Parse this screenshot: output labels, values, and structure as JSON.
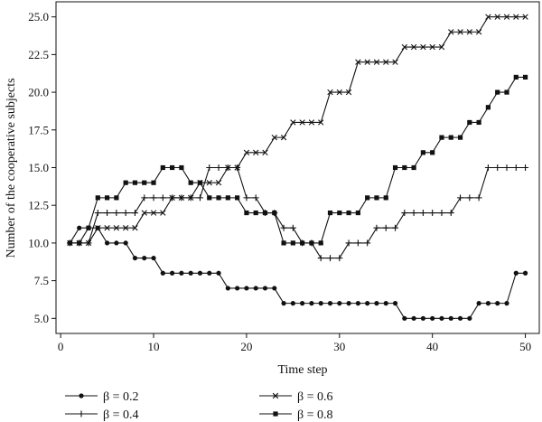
{
  "chart_data": {
    "type": "line",
    "xlabel": "Time step",
    "ylabel": "Number of the cooperative subjects",
    "xlim": [
      -0.5,
      51.5
    ],
    "ylim": [
      4.0,
      26.0
    ],
    "xticks": [
      0,
      10,
      20,
      30,
      40,
      50
    ],
    "yticks": [
      5.0,
      7.5,
      10.0,
      12.5,
      15.0,
      17.5,
      20.0,
      22.5,
      25.0
    ],
    "xtick_labels": [
      "0",
      "10",
      "20",
      "30",
      "40",
      "50"
    ],
    "ytick_labels": [
      "5.0",
      "7.5",
      "10.0",
      "12.5",
      "15.0",
      "17.5",
      "20.0",
      "22.5",
      "25.0"
    ],
    "grid": false,
    "legend_position": "bottom",
    "x": [
      1,
      2,
      3,
      4,
      5,
      6,
      7,
      8,
      9,
      10,
      11,
      12,
      13,
      14,
      15,
      16,
      17,
      18,
      19,
      20,
      21,
      22,
      23,
      24,
      25,
      26,
      27,
      28,
      29,
      30,
      31,
      32,
      33,
      34,
      35,
      36,
      37,
      38,
      39,
      40,
      41,
      42,
      43,
      44,
      45,
      46,
      47,
      48,
      49,
      50
    ],
    "series": [
      {
        "name": "β = 0.2",
        "marker": "dot",
        "values": [
          10,
          11,
          11,
          11,
          10,
          10,
          10,
          9,
          9,
          9,
          8,
          8,
          8,
          8,
          8,
          8,
          8,
          7,
          7,
          7,
          7,
          7,
          7,
          6,
          6,
          6,
          6,
          6,
          6,
          6,
          6,
          6,
          6,
          6,
          6,
          6,
          5,
          5,
          5,
          5,
          5,
          5,
          5,
          5,
          6,
          6,
          6,
          6,
          8,
          8
        ]
      },
      {
        "name": "β = 0.4",
        "marker": "plus",
        "values": [
          10,
          10,
          10,
          12,
          12,
          12,
          12,
          12,
          13,
          13,
          13,
          13,
          13,
          13,
          13,
          15,
          15,
          15,
          15,
          13,
          13,
          12,
          12,
          11,
          11,
          10,
          10,
          9,
          9,
          9,
          10,
          10,
          10,
          11,
          11,
          11,
          12,
          12,
          12,
          12,
          12,
          12,
          13,
          13,
          13,
          15,
          15,
          15,
          15,
          15
        ]
      },
      {
        "name": "β = 0.6",
        "marker": "cross",
        "values": [
          10,
          10,
          10,
          11,
          11,
          11,
          11,
          11,
          12,
          12,
          12,
          13,
          13,
          13,
          14,
          14,
          14,
          15,
          15,
          16,
          16,
          16,
          17,
          17,
          18,
          18,
          18,
          18,
          20,
          20,
          20,
          22,
          22,
          22,
          22,
          22,
          23,
          23,
          23,
          23,
          23,
          24,
          24,
          24,
          24,
          25,
          25,
          25,
          25,
          25
        ]
      },
      {
        "name": "β = 0.8",
        "marker": "square",
        "values": [
          10,
          10,
          11,
          13,
          13,
          13,
          14,
          14,
          14,
          14,
          15,
          15,
          15,
          14,
          14,
          13,
          13,
          13,
          13,
          12,
          12,
          12,
          12,
          10,
          10,
          10,
          10,
          10,
          12,
          12,
          12,
          12,
          13,
          13,
          13,
          15,
          15,
          15,
          16,
          16,
          17,
          17,
          17,
          18,
          18,
          19,
          20,
          20,
          21,
          21
        ]
      }
    ]
  }
}
